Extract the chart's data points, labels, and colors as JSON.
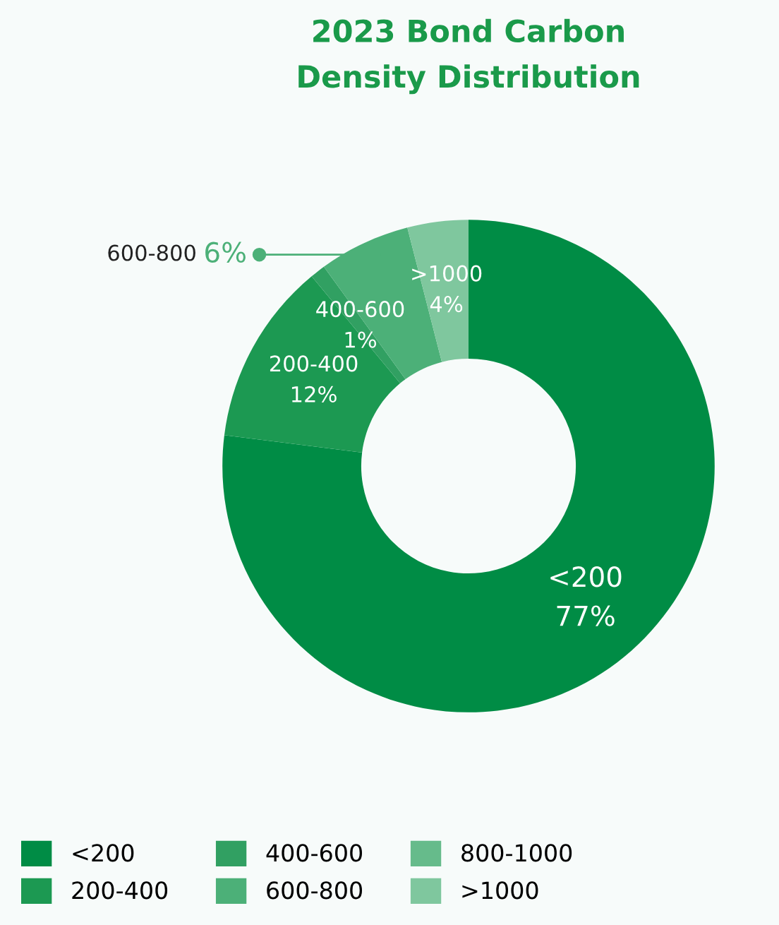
{
  "chart_data": {
    "type": "donut",
    "title": "2023 Bond Carbon\nDensity Distribution",
    "categories": [
      "<200",
      "200-400",
      "400-600",
      "600-800",
      "800-1000",
      ">1000"
    ],
    "values": [
      77,
      12,
      1,
      6,
      0,
      4
    ],
    "colors": [
      "#008c45",
      "#1c9952",
      "#31a062",
      "#4cb078",
      "#66bb8b",
      "#7fc79e"
    ],
    "value_labels": [
      "<200\n77%",
      "200-400\n12%",
      "400-600\n1%",
      null,
      null,
      ">1000\n4%"
    ],
    "annotations": [
      "600-800",
      "6%"
    ],
    "legend": "bottom"
  }
}
